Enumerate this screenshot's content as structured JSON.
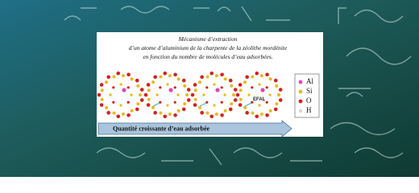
{
  "caption": {
    "lines": [
      "Mécanisme d’extraction",
      "d’un atome d’aluminium de la charpente de la zéolithe mordénite",
      "en fonction du nombre de molécules d’eau adsorbées."
    ]
  },
  "diagram": {
    "efal_label": "EFAL",
    "arrow_label": "Quantité croissante d’eau adsorbée"
  },
  "legend": {
    "items": [
      "Al",
      "Si",
      "O",
      "H"
    ]
  }
}
